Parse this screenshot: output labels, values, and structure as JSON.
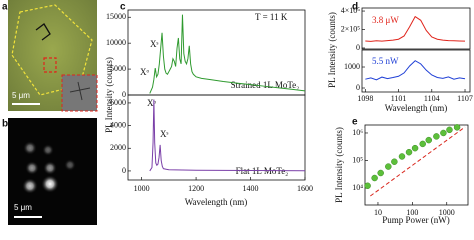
{
  "panels": [
    {
      "label": "a",
      "scale_bar": "5 μm"
    },
    {
      "label": "b",
      "scale_bar": "5 μm"
    }
  ],
  "chart_data": [
    {
      "type": "line",
      "label": "c",
      "ylabel": "PL Intensity (counts)",
      "annotations": [
        "T = 11 K",
        "Xᵒ",
        "Xˢ",
        "Strained 1L MoTe₂"
      ],
      "x": [
        1030,
        1040,
        1045,
        1050,
        1055,
        1060,
        1065,
        1070,
        1075,
        1080,
        1085,
        1090,
        1095,
        1100,
        1105,
        1110,
        1115,
        1120,
        1125,
        1130,
        1135,
        1140,
        1145,
        1150,
        1155,
        1160,
        1165,
        1170,
        1175,
        1180,
        1185,
        1190,
        1200,
        1220,
        1250,
        1300,
        1350,
        1400,
        1450,
        1500,
        1550,
        1600
      ],
      "series": [
        {
          "color": "#2f9a2f",
          "values": [
            300,
            1500,
            3000,
            5200,
            3500,
            4000,
            6000,
            9000,
            12000,
            7500,
            5000,
            4200,
            4000,
            4500,
            5000,
            5500,
            7000,
            6500,
            5500,
            9000,
            11000,
            7000,
            6000,
            15500,
            8000,
            6500,
            6000,
            7000,
            9500,
            6000,
            4500,
            4000,
            3500,
            3200,
            3000,
            2600,
            2300,
            2000,
            1700,
            1400,
            1100,
            800
          ]
        }
      ],
      "xlim": [
        950,
        1600
      ],
      "ylim": [
        0,
        16400
      ],
      "yticks": [
        0,
        5000,
        10000,
        15000
      ]
    },
    {
      "type": "line",
      "xlabel": "Wavelength (nm)",
      "annotations": [
        "Xᵒ",
        "Xˢ",
        "Flat 1L MoTe₂"
      ],
      "x": [
        1030,
        1038,
        1042,
        1045,
        1048,
        1052,
        1056,
        1060,
        1064,
        1068,
        1072,
        1076,
        1080,
        1090,
        1100,
        1150,
        1200,
        1300,
        1400,
        1500,
        1600
      ],
      "series": [
        {
          "color": "#7a3fa8",
          "values": [
            0,
            300,
            2500,
            6300,
            2500,
            700,
            500,
            600,
            1200,
            2300,
            900,
            400,
            200,
            150,
            100,
            80,
            60,
            50,
            40,
            30,
            20
          ]
        }
      ],
      "xlim": [
        950,
        1600
      ],
      "ylim": [
        -800,
        6700
      ],
      "yticks": [
        0,
        2000,
        4000,
        6000
      ],
      "xticks": [
        1000,
        1200,
        1400,
        1600
      ]
    },
    {
      "type": "line",
      "label": "d",
      "ylabel": "PL Intensity (counts)",
      "annotations": [
        "3.8 μW"
      ],
      "x": [
        1098,
        1098.5,
        1099,
        1099.5,
        1100,
        1100.5,
        1101,
        1101.5,
        1102,
        1102.5,
        1103,
        1103.5,
        1104,
        1104.5,
        1105,
        1105.5,
        1106,
        1106.5,
        1107
      ],
      "series": [
        {
          "color": "#e0241b",
          "values": [
            75000,
            72000,
            78000,
            74000,
            80000,
            85000,
            95000,
            130000,
            230000,
            340000,
            300000,
            190000,
            120000,
            95000,
            85000,
            80000,
            78000,
            76000,
            74000
          ]
        }
      ],
      "xlim": [
        1097.7,
        1107.45
      ],
      "ylim": [
        -11000,
        433000
      ],
      "yticks": [
        0,
        {
          "value": 200000,
          "label": "2×10⁵"
        },
        {
          "value": 400000,
          "label": "4×10⁵"
        }
      ]
    },
    {
      "type": "line",
      "xlabel": "Wavelength (nm)",
      "annotations": [
        "5.5 nW"
      ],
      "x": [
        1098,
        1098.5,
        1099,
        1099.5,
        1100,
        1100.5,
        1101,
        1101.5,
        1102,
        1102.5,
        1103,
        1103.5,
        1104,
        1104.5,
        1105,
        1105.5,
        1106,
        1106.5,
        1107
      ],
      "series": [
        {
          "color": "#1f3fd6",
          "values": [
            420,
            480,
            390,
            520,
            450,
            500,
            560,
            720,
            1050,
            1300,
            1150,
            850,
            620,
            500,
            460,
            530,
            420,
            480,
            440
          ]
        }
      ],
      "xlim": [
        1097.7,
        1107.45
      ],
      "ylim": [
        -190,
        1810
      ],
      "yticks": [
        0,
        1000
      ],
      "xticks": [
        1098,
        1101,
        1104,
        1107
      ]
    },
    {
      "type": "scatter",
      "label": "e",
      "ylabel": "PL Intensity (counts)",
      "xlabel": "Pump Power (nW)",
      "log_x": true,
      "log_y": true,
      "series": [
        {
          "type": "scatter",
          "color": "#5cbf3a",
          "x": [
            5,
            8,
            12,
            20,
            30,
            50,
            80,
            120,
            200,
            300,
            500,
            800,
            1200,
            2000
          ],
          "values": [
            12000,
            23000,
            35000,
            60000,
            90000,
            140000,
            200000,
            280000,
            400000,
            550000,
            750000,
            1000000,
            1300000,
            1600000
          ]
        },
        {
          "type": "line",
          "color": "#d9261c",
          "dashed": true,
          "x": [
            6,
            3400
          ],
          "values": [
            5100,
            1650000
          ]
        }
      ],
      "xlim": [
        4.2,
        4150
      ],
      "ylim": [
        2400,
        1950000
      ],
      "xticks": [
        10,
        100,
        1000
      ],
      "yticks": [
        {
          "value": 10000,
          "label": "10⁴"
        },
        {
          "value": 100000,
          "label": "10⁵"
        },
        {
          "value": 1000000,
          "label": "10⁶"
        }
      ]
    }
  ]
}
